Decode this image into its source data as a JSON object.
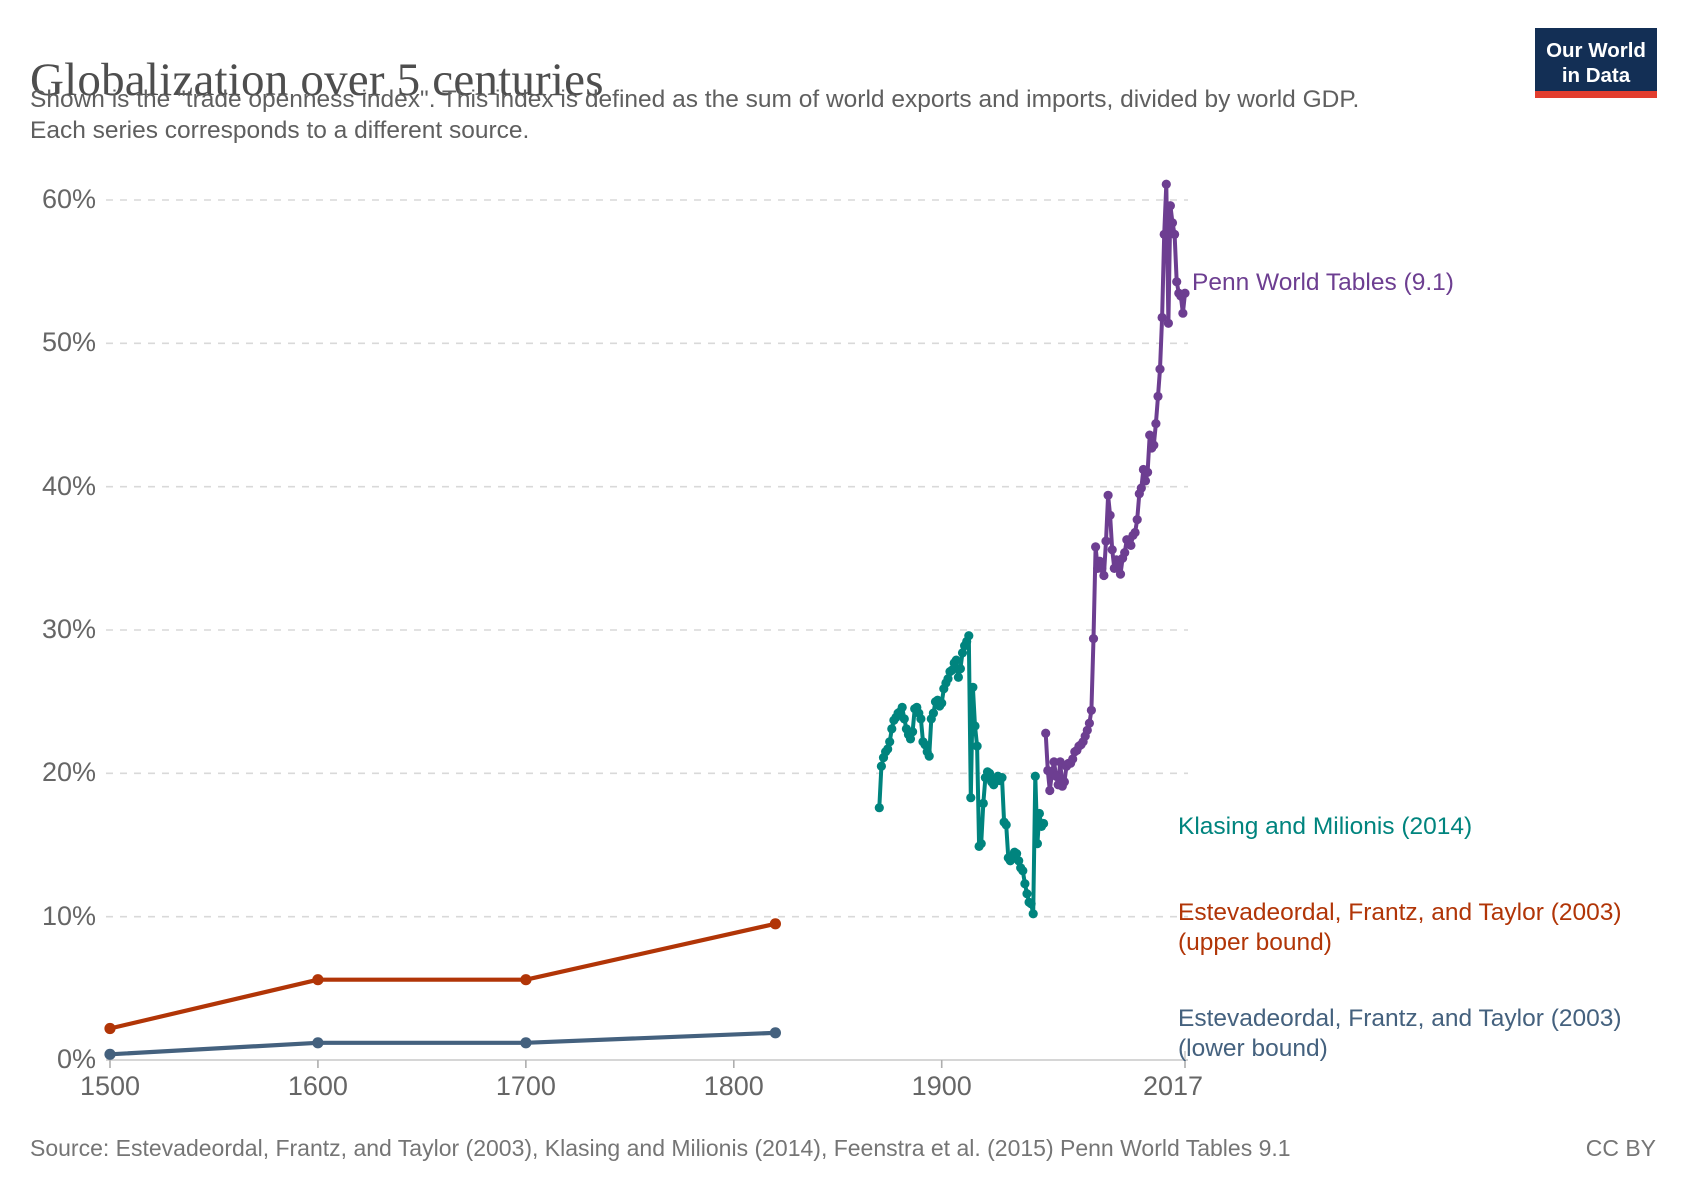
{
  "header": {
    "title": "Globalization over 5 centuries",
    "subtitle": "Shown is the \"trade openness index\". This index is defined as the sum of world exports and imports, divided by world GDP. Each series corresponds to a different source.",
    "logo": {
      "line1": "Our World",
      "line2": "in Data",
      "bg_color": "#132F55",
      "bar_color": "#E23D2E"
    }
  },
  "footer": {
    "source": "Source: Estevadeordal, Frantz, and Taylor (2003), Klasing and Milionis (2014), Feenstra et al. (2015) Penn World Tables 9.1",
    "license": "CC BY"
  },
  "chart_data": {
    "type": "line",
    "title": "Globalization over 5 centuries",
    "xlabel": "",
    "ylabel": "",
    "xlim": [
      1500,
      2017
    ],
    "ylim": [
      0,
      60
    ],
    "grid": "dashed-horizontal",
    "legend_position": "right-of-series-end",
    "x_ticks": [
      1500,
      1600,
      1700,
      1800,
      1900,
      2017
    ],
    "x_tick_labels": [
      "1500",
      "1600",
      "1700",
      "1800",
      "1900",
      "2017"
    ],
    "y_ticks": [
      0,
      10,
      20,
      30,
      40,
      50,
      60
    ],
    "y_tick_labels": [
      "0%",
      "10%",
      "20%",
      "30%",
      "40%",
      "50%",
      "60%"
    ],
    "series": [
      {
        "name": "Penn World Tables (9.1)",
        "color": "#6D3E91",
        "start_year": 1950,
        "values": [
          22.8,
          20.2,
          18.8,
          20.0,
          20.8,
          19.8,
          19.2,
          20.8,
          19.1,
          19.4,
          20.5,
          20.7,
          20.7,
          21.0,
          21.5,
          21.6,
          21.9,
          22.0,
          22.2,
          22.6,
          23.0,
          23.5,
          24.4,
          29.4,
          35.8,
          34.3,
          34.8,
          34.3,
          33.8,
          36.2,
          39.4,
          38.0,
          35.6,
          34.3,
          34.9,
          34.6,
          33.9,
          35.0,
          35.4,
          36.3,
          36.2,
          35.9,
          36.6,
          36.8,
          37.7,
          39.5,
          39.9,
          41.2,
          40.4,
          41.0,
          43.6,
          42.7,
          42.9,
          44.4,
          46.3,
          48.2,
          51.8,
          57.6,
          61.1,
          51.4,
          59.6,
          58.4,
          57.6,
          54.3,
          53.5,
          53.3,
          52.1,
          53.5
        ]
      },
      {
        "name": "Klasing and Milionis (2014)",
        "color": "#00847E",
        "start_year": 1870,
        "values": [
          17.6,
          20.5,
          21.1,
          21.5,
          21.7,
          22.2,
          23.1,
          23.7,
          23.9,
          24.2,
          24.3,
          24.6,
          23.8,
          23.1,
          22.7,
          22.4,
          22.9,
          24.5,
          24.6,
          24.2,
          23.8,
          22.2,
          22.0,
          21.5,
          21.2,
          23.8,
          24.2,
          25.0,
          25.1,
          24.7,
          24.9,
          25.9,
          26.3,
          26.6,
          27.1,
          27.2,
          27.7,
          27.9,
          26.7,
          27.3,
          28.4,
          28.9,
          29.2,
          29.6,
          18.3,
          26.0,
          23.3,
          21.9,
          14.9,
          15.1,
          17.9,
          19.7,
          20.1,
          20.0,
          19.4,
          19.2,
          19.6,
          19.8,
          19.5,
          19.7,
          16.6,
          16.4,
          14.1,
          13.9,
          14.2,
          14.5,
          14.4,
          13.9,
          13.4,
          13.2,
          12.3,
          11.6,
          11.0,
          10.9,
          10.2,
          19.8,
          15.1,
          17.2,
          16.3,
          16.5
        ]
      },
      {
        "name": "Estevadeordal, Frantz, and Taylor (2003) (upper bound)",
        "color": "#B13507",
        "years": [
          1500,
          1600,
          1700,
          1820
        ],
        "values": [
          2.2,
          5.6,
          5.6,
          9.5
        ]
      },
      {
        "name": "Estevadeordal, Frantz, and Taylor (2003) (lower bound)",
        "color": "#44617E",
        "years": [
          1500,
          1600,
          1700,
          1820
        ],
        "values": [
          0.4,
          1.2,
          1.2,
          1.9
        ]
      }
    ]
  }
}
